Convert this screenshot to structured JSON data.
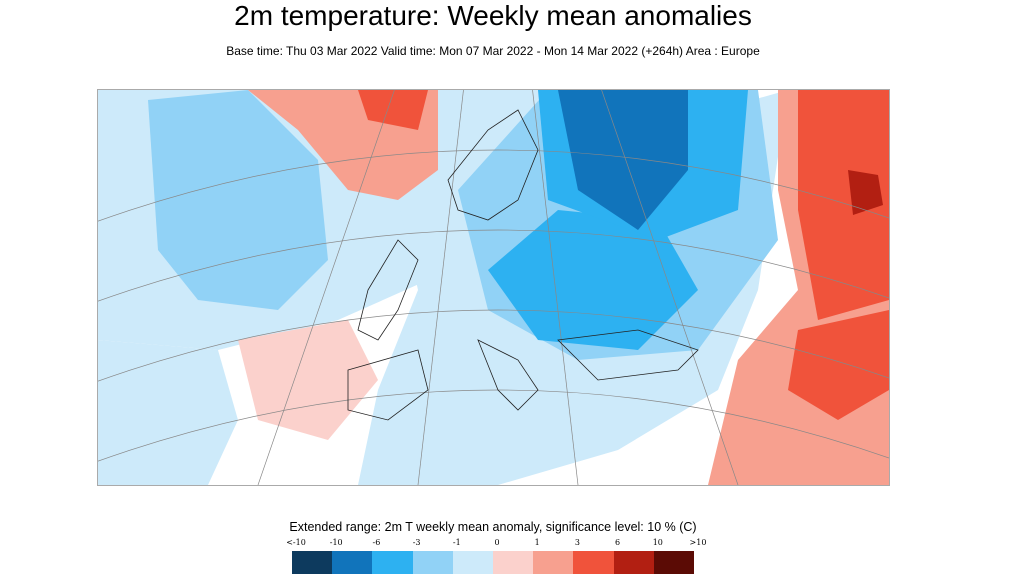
{
  "title": "2m temperature: Weekly mean anomalies",
  "subtitle": "Base time: Thu 03 Mar 2022 Valid time: Mon 07 Mar 2022 - Mon 14 Mar 2022 (+264h) Area : Europe",
  "legend": {
    "title": "Extended range: 2m T weekly mean anomaly, significance level: 10 % (C)",
    "ticks": [
      "<-10",
      "-10",
      "-6",
      "-3",
      "-1",
      "0",
      "1",
      "3",
      "6",
      "10",
      ">10"
    ],
    "colors": [
      "#0d3a5e",
      "#1174bb",
      "#2db1f1",
      "#91d2f6",
      "#cdeafa",
      "#fbd1cc",
      "#f7a08f",
      "#f0533b",
      "#b21f12",
      "#5b0b05"
    ]
  }
}
